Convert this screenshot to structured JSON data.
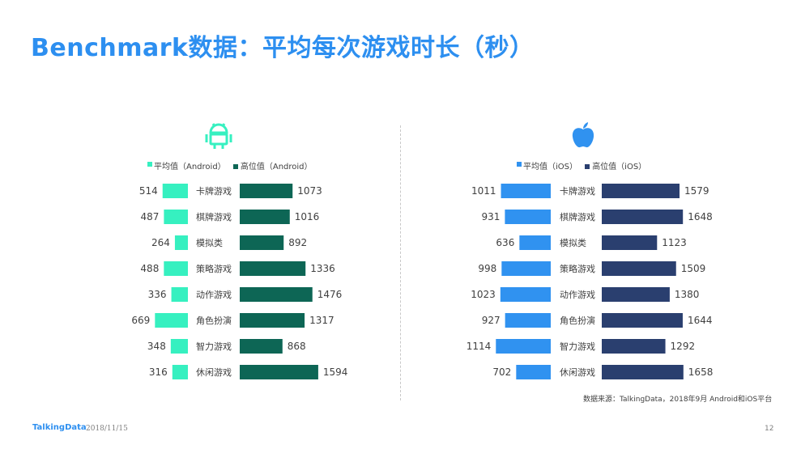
{
  "title": "Benchmark数据：平均每次游戏时长（秒）",
  "source": "数据来源：TalkingData，2018年9月 Android和iOS平台",
  "footer": {
    "brand": "TalkingData",
    "date": "2018/11/15",
    "page": "12"
  },
  "colors": {
    "title": "#2d8ff0",
    "android_avg": "#36f0c0",
    "android_high": "#0d6655",
    "ios_avg": "#3092f0",
    "ios_high": "#2a3f6f"
  },
  "chart_data": [
    {
      "type": "bar",
      "platform": "Android",
      "icon": "android-icon",
      "categories": [
        "卡牌游戏",
        "棋牌游戏",
        "模拟类",
        "策略游戏",
        "动作游戏",
        "角色扮演",
        "智力游戏",
        "休闲游戏"
      ],
      "series": [
        {
          "name": "平均值（Android）",
          "values": [
            514,
            487,
            264,
            488,
            336,
            669,
            348,
            316
          ]
        },
        {
          "name": "高位值（Android）",
          "values": [
            1073,
            1016,
            892,
            1336,
            1476,
            1317,
            868,
            1594
          ]
        }
      ],
      "legend_position": "top"
    },
    {
      "type": "bar",
      "platform": "iOS",
      "icon": "apple-icon",
      "categories": [
        "卡牌游戏",
        "棋牌游戏",
        "模拟类",
        "策略游戏",
        "动作游戏",
        "角色扮演",
        "智力游戏",
        "休闲游戏"
      ],
      "series": [
        {
          "name": "平均值（iOS）",
          "values": [
            1011,
            931,
            636,
            998,
            1023,
            927,
            1114,
            702
          ]
        },
        {
          "name": "高位值（iOS）",
          "values": [
            1579,
            1648,
            1123,
            1509,
            1380,
            1644,
            1292,
            1658
          ]
        }
      ],
      "legend_position": "top"
    }
  ]
}
